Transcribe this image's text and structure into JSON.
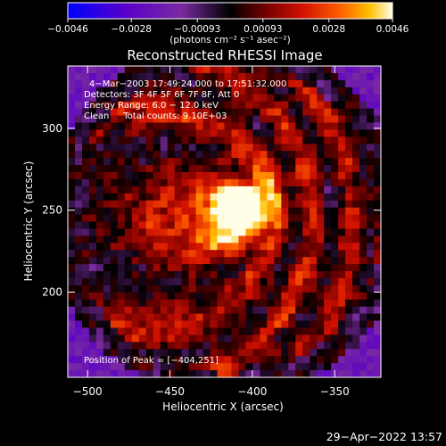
{
  "chart_data": {
    "type": "heatmap",
    "title": "Reconstructed RHESSI Image",
    "xlabel": "Heliocentric X (arcsec)",
    "ylabel": "Heliocentric Y (arcsec)",
    "xlim": [
      -512,
      -322
    ],
    "ylim": [
      148,
      338
    ],
    "x_ticks": [
      -500,
      -450,
      -400,
      -350
    ],
    "x_tick_labels": [
      "−500",
      "−450",
      "−400",
      "−350"
    ],
    "y_ticks": [
      200,
      250,
      300
    ],
    "y_tick_labels": [
      "200",
      "250",
      "300"
    ],
    "colorbar": {
      "range": [
        -0.0046,
        0.0046
      ],
      "ticks": [
        -0.0046,
        -0.0028,
        -0.00093,
        0.00093,
        0.0028,
        0.0046
      ],
      "tick_labels": [
        "−0.0046",
        "−0.0028",
        "−0.00093",
        "0.00093",
        "0.0028",
        "0.0046"
      ],
      "unit_label": "(photons cm⁻² s⁻¹ asec⁻²)",
      "colors": [
        "#0000ff",
        "#5a00c8",
        "#7a2aa0",
        "#000000",
        "#6a0000",
        "#d01000",
        "#ff6000",
        "#ffc000",
        "#ffffe8"
      ]
    },
    "annotations": {
      "time_range": "4−Mar−2003 17:49:24.000 to 17:51:32.000",
      "detectors": "Detectors: 3F 4F 5F 6F 7F 8F, Att 0",
      "energy": "Energy Range: 6.0 − 12.0 keV",
      "clean": "Clean     Total counts: 9.10E+03",
      "peak": "Position of Peak = [−404,251]"
    },
    "peak_position": [
      -404,
      251
    ]
  },
  "footer": {
    "timestamp": "29−Apr−2022 13:57"
  }
}
